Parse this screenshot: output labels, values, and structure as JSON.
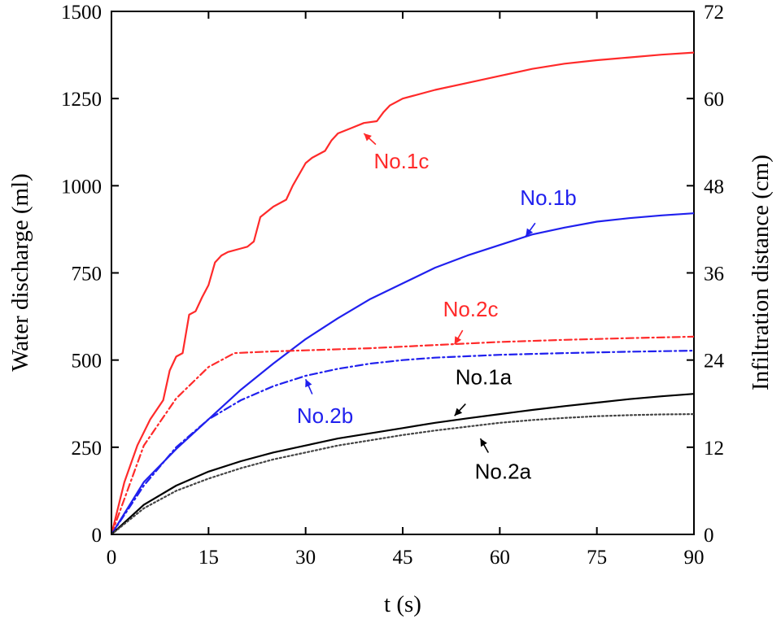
{
  "chart_data": {
    "type": "line",
    "title": "",
    "xlabel": "t (s)",
    "ylabel": "Water discharge (ml)",
    "y2label": "Infiltration distance (cm)",
    "xlim": [
      0,
      90
    ],
    "ylim": [
      0,
      1500
    ],
    "y2lim": [
      0,
      72
    ],
    "xticks": [
      0,
      15,
      30,
      45,
      60,
      75,
      90
    ],
    "yticks": [
      0,
      250,
      500,
      750,
      1000,
      1250,
      1500
    ],
    "y2ticks": [
      0,
      12,
      24,
      36,
      48,
      60,
      72
    ],
    "grid": false,
    "series": [
      {
        "name": "No.1c",
        "color": "#ff2a2a",
        "dash": "solid",
        "x": [
          0,
          2,
          4,
          6,
          8,
          9,
          10,
          11,
          12,
          13,
          14,
          15,
          16,
          17,
          18,
          20,
          21,
          22,
          23,
          25,
          27,
          28,
          30,
          31,
          33,
          34,
          35,
          37,
          39,
          41,
          42,
          43,
          45,
          50,
          55,
          60,
          65,
          70,
          75,
          80,
          85,
          90
        ],
        "y": [
          0,
          150,
          255,
          330,
          385,
          470,
          510,
          520,
          630,
          640,
          680,
          715,
          780,
          800,
          810,
          820,
          825,
          840,
          910,
          940,
          960,
          1000,
          1065,
          1080,
          1100,
          1130,
          1150,
          1165,
          1180,
          1185,
          1210,
          1230,
          1250,
          1275,
          1295,
          1315,
          1335,
          1350,
          1360,
          1368,
          1376,
          1382
        ]
      },
      {
        "name": "No.1b",
        "color": "#2020ee",
        "dash": "solid",
        "x": [
          0,
          5,
          10,
          15,
          20,
          25,
          30,
          35,
          40,
          45,
          50,
          55,
          60,
          65,
          70,
          75,
          80,
          85,
          90
        ],
        "y": [
          0,
          150,
          245,
          330,
          415,
          490,
          560,
          620,
          675,
          720,
          765,
          800,
          830,
          860,
          880,
          897,
          907,
          915,
          921
        ]
      },
      {
        "name": "No.2c",
        "color": "#ff2a2a",
        "dash": "dashdot",
        "x": [
          0,
          5,
          10,
          15,
          19,
          25,
          30,
          40,
          50,
          60,
          70,
          80,
          90
        ],
        "y": [
          0,
          255,
          390,
          480,
          520,
          525,
          528,
          534,
          543,
          552,
          558,
          563,
          567
        ]
      },
      {
        "name": "No.2b",
        "color": "#2020ee",
        "dash": "dashdot",
        "x": [
          0,
          5,
          10,
          15,
          20,
          25,
          30,
          35,
          40,
          45,
          50,
          60,
          70,
          80,
          90
        ],
        "y": [
          0,
          140,
          250,
          330,
          385,
          425,
          455,
          475,
          490,
          500,
          507,
          515,
          520,
          524,
          527
        ]
      },
      {
        "name": "No.1a",
        "color": "#000000",
        "dash": "solid",
        "x": [
          0,
          5,
          10,
          15,
          20,
          25,
          30,
          35,
          40,
          45,
          50,
          55,
          60,
          65,
          70,
          75,
          80,
          85,
          90
        ],
        "y": [
          0,
          85,
          140,
          180,
          210,
          235,
          255,
          275,
          290,
          305,
          320,
          333,
          345,
          357,
          368,
          378,
          388,
          396,
          403
        ]
      },
      {
        "name": "No.2a",
        "color": "#444444",
        "dash": "dotted",
        "x": [
          0,
          5,
          10,
          15,
          20,
          25,
          30,
          35,
          40,
          45,
          50,
          55,
          60,
          65,
          70,
          75,
          80,
          85,
          90
        ],
        "y": [
          0,
          75,
          125,
          160,
          190,
          215,
          235,
          255,
          270,
          285,
          298,
          309,
          320,
          328,
          334,
          339,
          342,
          344,
          345
        ]
      }
    ],
    "annotations": [
      {
        "text": "No.1c",
        "color": "#ff2a2a",
        "text_x": 44.8,
        "text_y": 1050,
        "target_x": 39,
        "target_y": 1150
      },
      {
        "text": "No.1b",
        "color": "#2020ee",
        "text_x": 67.5,
        "text_y": 945,
        "target_x": 64,
        "target_y": 855
      },
      {
        "text": "No.2c",
        "color": "#ff2a2a",
        "text_x": 55.5,
        "text_y": 625,
        "target_x": 53,
        "target_y": 545
      },
      {
        "text": "No.2b",
        "color": "#2020ee",
        "text_x": 33,
        "text_y": 320,
        "target_x": 30,
        "target_y": 445
      },
      {
        "text": "No.1a",
        "color": "#000000",
        "text_x": 57.5,
        "text_y": 430,
        "target_x": 53,
        "target_y": 340
      },
      {
        "text": "No.2a",
        "color": "#000000",
        "text_x": 60.5,
        "text_y": 160,
        "target_x": 57,
        "target_y": 275
      }
    ]
  }
}
